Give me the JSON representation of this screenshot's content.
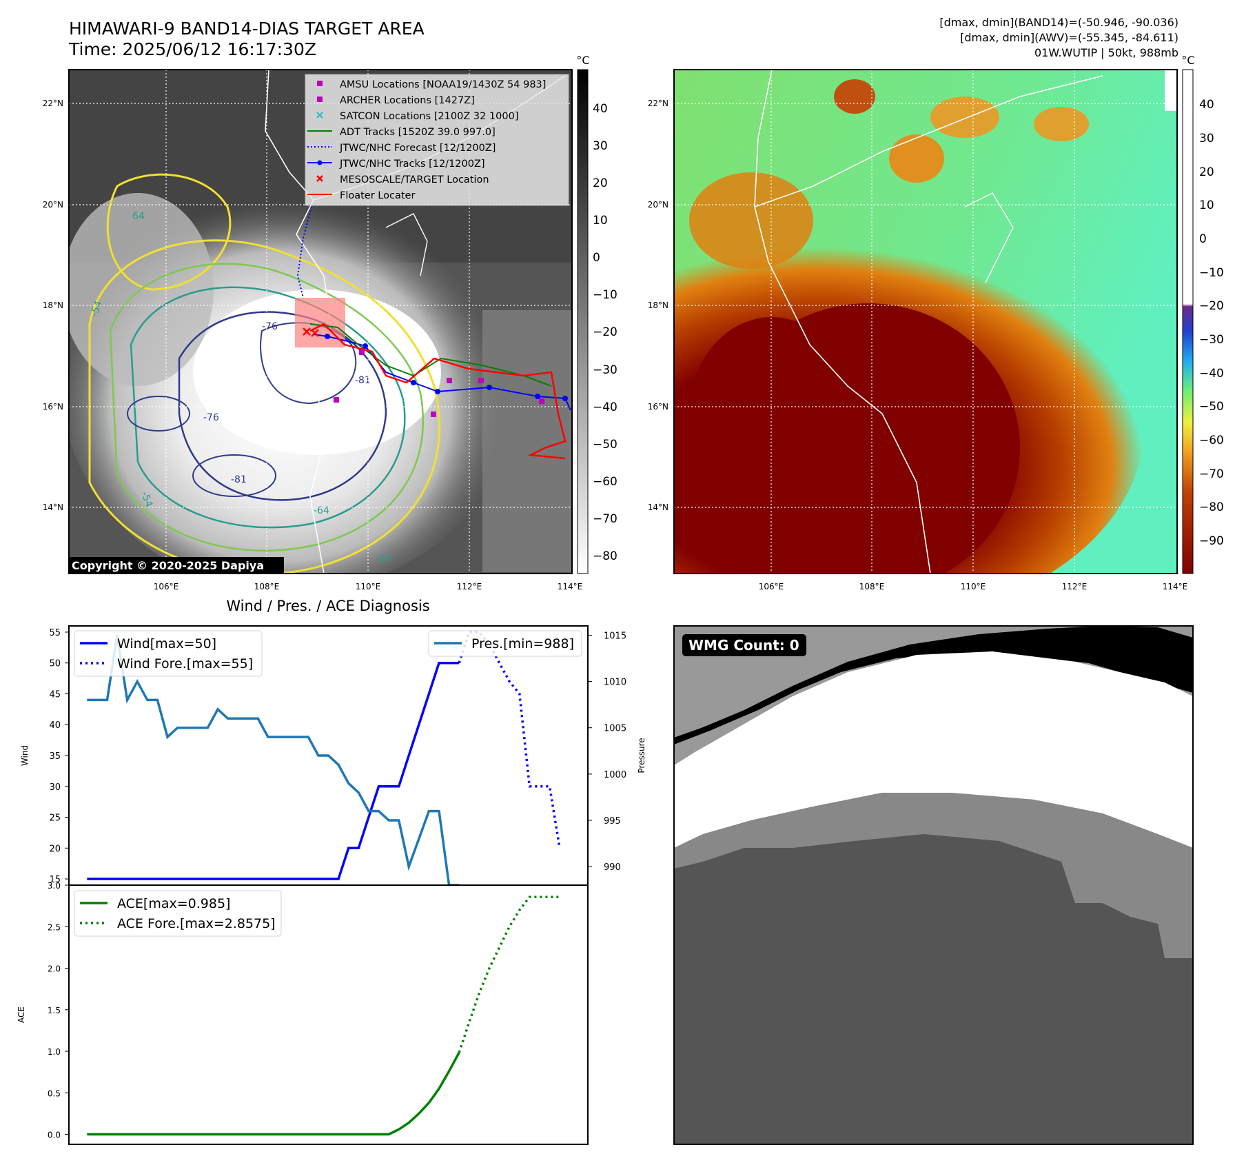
{
  "header": {
    "title": "HIMAWARI-9 BAND14-DIAS TARGET AREA",
    "time": "Time: 2025/06/12 16:17:30Z",
    "dmax_band14": "[dmax, dmin](BAND14)=(-50.946, -90.036)",
    "dmax_awv": "[dmax, dmin](AWV)=(-55.345, -84.611)",
    "storm": "01W.WUTIP | 50kt, 988mb"
  },
  "copyright": "Copyright © 2020-2025 Dapiya",
  "map": {
    "lon_ticks": [
      "106°E",
      "108°E",
      "110°E",
      "112°E",
      "114°E"
    ],
    "lat_ticks": [
      "22°N",
      "20°N",
      "18°N",
      "16°N",
      "14°N"
    ],
    "contour_labels": [
      "64",
      "-54",
      "-76",
      "-81",
      "-76",
      "-54",
      "-64",
      "-54",
      "-81"
    ],
    "legend": [
      {
        "label": "AMSU Locations [NOAA19/1430Z 54 983]",
        "color": "#bf00bf",
        "kind": "square"
      },
      {
        "label": "ARCHER Locations [1427Z]",
        "color": "#bf00bf",
        "kind": "square"
      },
      {
        "label": "SATCON Locations [2100Z 32 1000]",
        "color": "#1fbfbf",
        "kind": "x"
      },
      {
        "label": "ADT Tracks [1520Z 39.0 997.0]",
        "color": "#008000",
        "kind": "line"
      },
      {
        "label": "JTWC/NHC Forecast [12/1200Z]",
        "color": "#0000ff",
        "kind": "dotted"
      },
      {
        "label": "JTWC/NHC Tracks [12/1200Z]",
        "color": "#0000ff",
        "kind": "dotline"
      },
      {
        "label": "MESOSCALE/TARGET Location",
        "color": "#ff0000",
        "kind": "x"
      },
      {
        "label": "Floater Locater",
        "color": "#ff0000",
        "kind": "line"
      }
    ],
    "cbar1": {
      "unit": "°C",
      "ticks": [
        "40",
        "30",
        "20",
        "10",
        "0",
        "−10",
        "−20",
        "−30",
        "−40",
        "−50",
        "−60",
        "−70",
        "−80"
      ]
    },
    "cbar2": {
      "unit": "°C",
      "ticks": [
        "40",
        "30",
        "20",
        "10",
        "0",
        "−10",
        "−20",
        "−30",
        "−40",
        "−50",
        "−60",
        "−70",
        "−80",
        "−90"
      ]
    }
  },
  "wmg": {
    "label": "WMG Count: 0"
  },
  "chart_data": [
    {
      "type": "line",
      "title": "Wind / Pres. / ACE Diagnosis",
      "ylabel": "Wind",
      "ylim": [
        14,
        56
      ],
      "yticks": [
        15,
        20,
        25,
        30,
        35,
        40,
        45,
        50,
        55
      ],
      "series": [
        {
          "name": "Wind[max=50]",
          "color": "#0000ff",
          "style": "solid",
          "axis": "left",
          "x": [
            0,
            1,
            2,
            3,
            4,
            5,
            6,
            7,
            8,
            9,
            10,
            11,
            12,
            13,
            14,
            15,
            16,
            17,
            18,
            19,
            20,
            21,
            22,
            23,
            24,
            25,
            26,
            27,
            28,
            29,
            30,
            31,
            32,
            33,
            34,
            35,
            36,
            37
          ],
          "values": [
            15,
            15,
            15,
            15,
            15,
            15,
            15,
            15,
            15,
            15,
            15,
            15,
            15,
            15,
            15,
            15,
            15,
            15,
            15,
            15,
            15,
            15,
            15,
            15,
            15,
            15,
            20,
            20,
            25,
            30,
            30,
            30,
            35,
            40,
            45,
            50,
            50,
            50
          ]
        },
        {
          "name": "Wind Fore.[max=55]",
          "color": "#0000ff",
          "style": "dotted",
          "axis": "left",
          "x": [
            37,
            38,
            39,
            40,
            41,
            42,
            43,
            44,
            45,
            46,
            47
          ],
          "values": [
            50,
            55,
            55,
            53,
            50,
            47,
            45,
            30,
            30,
            30,
            20
          ]
        },
        {
          "name": "Pres.[min=988]",
          "color": "#1f77b4",
          "style": "solid",
          "axis": "right",
          "x": [
            0,
            1,
            2,
            3,
            4,
            5,
            6,
            7,
            8,
            9,
            10,
            11,
            12,
            13,
            14,
            15,
            16,
            17,
            18,
            19,
            20,
            21,
            22,
            23,
            24,
            25,
            26,
            27,
            28,
            29,
            30,
            31,
            32,
            33,
            34,
            35,
            36,
            37
          ],
          "values": [
            1008,
            1008,
            1008,
            1015,
            1008,
            1010,
            1008,
            1008,
            1004,
            1005,
            1005,
            1005,
            1005,
            1007,
            1006,
            1006,
            1006,
            1006,
            1004,
            1004,
            1004,
            1004,
            1004,
            1002,
            1002,
            1001,
            999,
            998,
            996,
            996,
            995,
            995,
            990,
            993,
            996,
            996,
            988,
            988
          ]
        }
      ],
      "y2label": "Pressure",
      "y2lim": [
        988,
        1016
      ],
      "y2ticks": [
        990,
        995,
        1000,
        1005,
        1010,
        1015
      ],
      "legend_left": "upper-left",
      "legend_right": "upper-right"
    },
    {
      "type": "line",
      "ylabel": "ACE",
      "ylim": [
        -0.12,
        3.0
      ],
      "yticks": [
        "0.0",
        "0.5",
        "1.0",
        "1.5",
        "2.0",
        "2.5",
        "3.0"
      ],
      "series": [
        {
          "name": "ACE[max=0.985]",
          "color": "#008000",
          "style": "solid",
          "x": [
            0,
            2,
            4,
            6,
            8,
            10,
            12,
            14,
            16,
            18,
            20,
            22,
            24,
            25,
            26,
            27,
            28,
            29,
            30,
            31,
            32,
            33,
            34,
            35,
            36,
            37
          ],
          "values": [
            0,
            0,
            0,
            0,
            0,
            0,
            0,
            0,
            0,
            0,
            0,
            0,
            0,
            0,
            0,
            0,
            0,
            0,
            0,
            0.06,
            0.14,
            0.25,
            0.38,
            0.55,
            0.76,
            0.985
          ]
        },
        {
          "name": "ACE Fore.[max=2.8575]",
          "color": "#008000",
          "style": "dotted",
          "x": [
            37,
            38,
            39,
            40,
            41,
            42,
            43,
            44,
            45,
            46,
            47
          ],
          "values": [
            0.985,
            1.35,
            1.7,
            2.0,
            2.25,
            2.5,
            2.7,
            2.8575,
            2.8575,
            2.8575,
            2.8575
          ]
        }
      ],
      "legend": "upper-left"
    }
  ]
}
